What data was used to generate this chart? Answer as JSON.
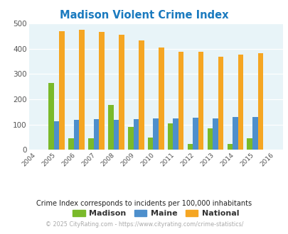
{
  "title": "Madison Violent Crime Index",
  "years": [
    2005,
    2006,
    2007,
    2008,
    2009,
    2010,
    2011,
    2012,
    2013,
    2014,
    2015
  ],
  "madison": [
    263,
    45,
    45,
    177,
    90,
    48,
    105,
    22,
    85,
    22,
    45
  ],
  "maine": [
    113,
    118,
    121,
    118,
    121,
    124,
    124,
    126,
    124,
    131,
    131
  ],
  "national": [
    469,
    474,
    467,
    455,
    432,
    405,
    387,
    387,
    368,
    376,
    383
  ],
  "madison_color": "#7aba2a",
  "maine_color": "#4d8fcc",
  "national_color": "#f5a623",
  "bg_color": "#e8f4f8",
  "ylim": [
    0,
    500
  ],
  "yticks": [
    0,
    100,
    200,
    300,
    400,
    500
  ],
  "xlabel_years": [
    2004,
    2005,
    2006,
    2007,
    2008,
    2009,
    2010,
    2011,
    2012,
    2013,
    2014,
    2015,
    2016
  ],
  "subtitle": "Crime Index corresponds to incidents per 100,000 inhabitants",
  "footer": "© 2025 CityRating.com - https://www.cityrating.com/crime-statistics/",
  "title_color": "#1a7abf",
  "subtitle_color": "#222222",
  "footer_color": "#aaaaaa",
  "bar_width": 0.27,
  "legend_labels": [
    "Madison",
    "Maine",
    "National"
  ]
}
